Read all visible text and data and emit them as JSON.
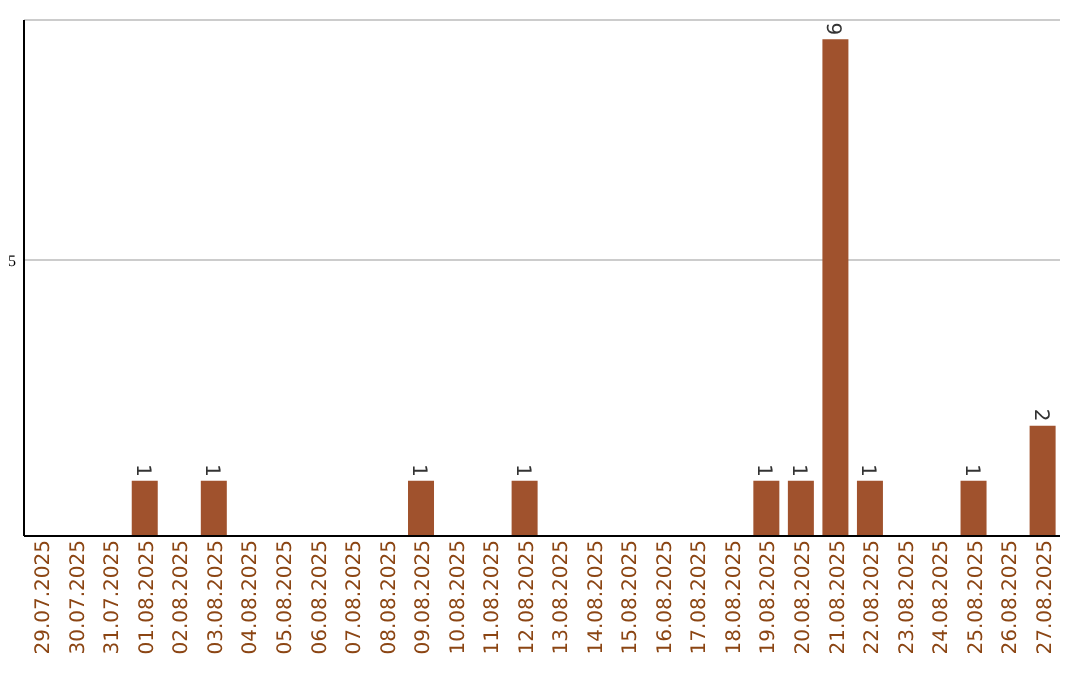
{
  "chart_data": {
    "type": "bar",
    "categories": [
      "29.07.2025",
      "30.07.2025",
      "31.07.2025",
      "01.08.2025",
      "02.08.2025",
      "03.08.2025",
      "04.08.2025",
      "05.08.2025",
      "06.08.2025",
      "07.08.2025",
      "08.08.2025",
      "09.08.2025",
      "10.08.2025",
      "11.08.2025",
      "12.08.2025",
      "13.08.2025",
      "14.08.2025",
      "15.08.2025",
      "16.08.2025",
      "17.08.2025",
      "18.08.2025",
      "19.08.2025",
      "20.08.2025",
      "21.08.2025",
      "22.08.2025",
      "23.08.2025",
      "24.08.2025",
      "25.08.2025",
      "26.08.2025",
      "27.08.2025"
    ],
    "values": [
      0,
      0,
      0,
      1,
      0,
      1,
      0,
      0,
      0,
      0,
      0,
      1,
      0,
      0,
      1,
      0,
      0,
      0,
      0,
      0,
      0,
      1,
      1,
      9,
      1,
      0,
      0,
      1,
      0,
      2
    ],
    "value_labels": [
      null,
      null,
      null,
      "1",
      null,
      "1",
      null,
      null,
      null,
      null,
      null,
      "1",
      null,
      null,
      "1",
      null,
      null,
      null,
      null,
      null,
      null,
      "1",
      "1",
      "9",
      "1",
      null,
      null,
      "1",
      null,
      "2"
    ],
    "color": "#a0522d",
    "ylim": [
      0,
      9.35
    ],
    "yticks": [
      {
        "value": 0,
        "label": null
      },
      5
    ],
    "grid": "y"
  }
}
